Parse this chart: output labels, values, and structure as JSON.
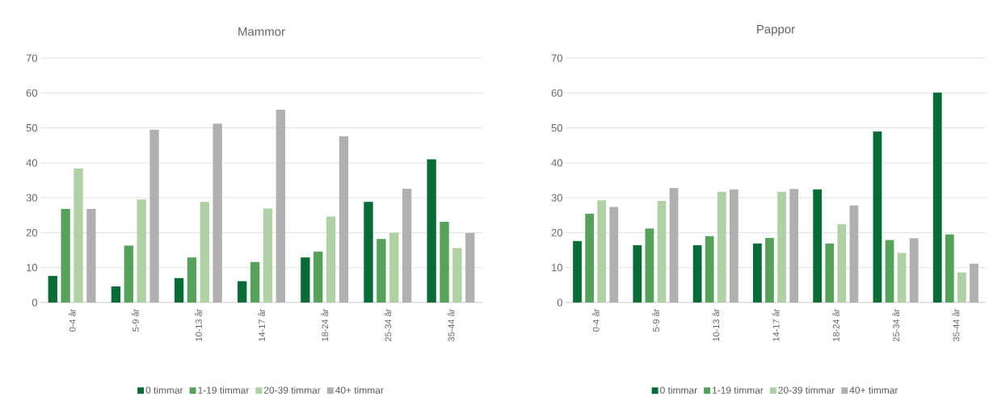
{
  "chart_data": [
    {
      "type": "bar",
      "title": "Mammor",
      "categories": [
        "0-4 år",
        "5-9 år",
        "10-13 år",
        "14-17 år",
        "18-24 år",
        "25-34 år",
        "35-44 år"
      ],
      "ylim": [
        0,
        70
      ],
      "yticks": [
        0,
        10,
        20,
        30,
        40,
        50,
        60,
        70
      ],
      "grid": "y",
      "legend": "bottom",
      "series": [
        {
          "name": "0 timmar",
          "color": "#056b37",
          "values": [
            7.6,
            4.6,
            7.0,
            6.1,
            12.9,
            28.8,
            41.0
          ]
        },
        {
          "name": "1-19 timmar",
          "color": "#55a35a",
          "values": [
            26.8,
            16.3,
            12.9,
            11.6,
            14.6,
            18.2,
            23.1
          ]
        },
        {
          "name": "20-39 timmar",
          "color": "#b0d1a4",
          "values": [
            38.4,
            29.5,
            28.8,
            26.9,
            24.6,
            20.0,
            15.6
          ]
        },
        {
          "name": "40+ timmar",
          "color": "#b0b0b0",
          "values": [
            26.8,
            49.5,
            51.2,
            55.2,
            47.6,
            32.6,
            19.9
          ]
        }
      ]
    },
    {
      "type": "bar",
      "title": "Pappor",
      "categories": [
        "0-4 år",
        "5-9 år",
        "10-13 år",
        "14-17 år",
        "18-24 år",
        "25-34 år",
        "35-44 år"
      ],
      "ylim": [
        0,
        70
      ],
      "yticks": [
        0,
        10,
        20,
        30,
        40,
        50,
        60,
        70
      ],
      "grid": "y",
      "legend": "bottom",
      "series": [
        {
          "name": "0 timmar",
          "color": "#056b37",
          "values": [
            17.6,
            16.4,
            16.4,
            16.9,
            32.4,
            49.0,
            60.1
          ]
        },
        {
          "name": "1-19 timmar",
          "color": "#55a35a",
          "values": [
            25.4,
            21.2,
            19.0,
            18.5,
            16.9,
            17.9,
            19.5
          ]
        },
        {
          "name": "20-39 timmar",
          "color": "#b0d1a4",
          "values": [
            29.3,
            29.1,
            31.7,
            31.7,
            22.4,
            14.2,
            8.6
          ]
        },
        {
          "name": "40+ timmar",
          "color": "#b0b0b0",
          "values": [
            27.4,
            32.8,
            32.4,
            32.5,
            27.8,
            18.4,
            11.1
          ]
        }
      ]
    }
  ]
}
